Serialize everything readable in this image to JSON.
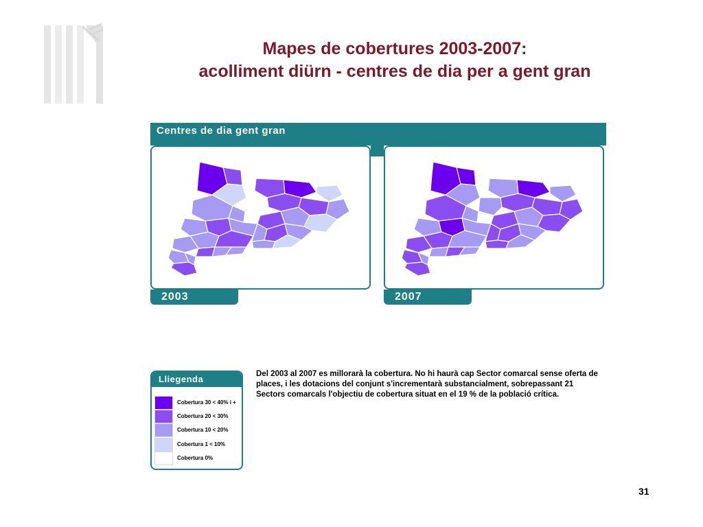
{
  "title": {
    "line1": "Mapes de cobertures 2003-2007:",
    "line2": "acolliment diürn - centres de dia per a gent gran"
  },
  "maps": {
    "header": "Centres de dia gent gran",
    "years": [
      "2003",
      "2007"
    ]
  },
  "legend": {
    "title": "Lliegenda",
    "items": [
      {
        "label": "Cobertura 30 < 40% i +",
        "color": "#6a00ee"
      },
      {
        "label": "Cobertura 20 < 30%",
        "color": "#8a4ef0"
      },
      {
        "label": "Cobertura 10 < 20%",
        "color": "#a79af3"
      },
      {
        "label": "Cobertura 1 < 10%",
        "color": "#cfd6fb"
      },
      {
        "label": "Cobertura 0%",
        "color": "#ffffff"
      }
    ]
  },
  "note": "Del 2003 al 2007 es millorarà la cobertura. No hi haurà cap Sector comarcal sense oferta de places, i les dotacions del conjunt s'incrementarà substancialment, sobrepassant 21 Sectors comarcals l'objectiu de cobertura situat en el 19 % de la població crítica.",
  "page_number": "31",
  "colors": {
    "title": "#7a1a2a",
    "teal": "#1e7f86"
  }
}
